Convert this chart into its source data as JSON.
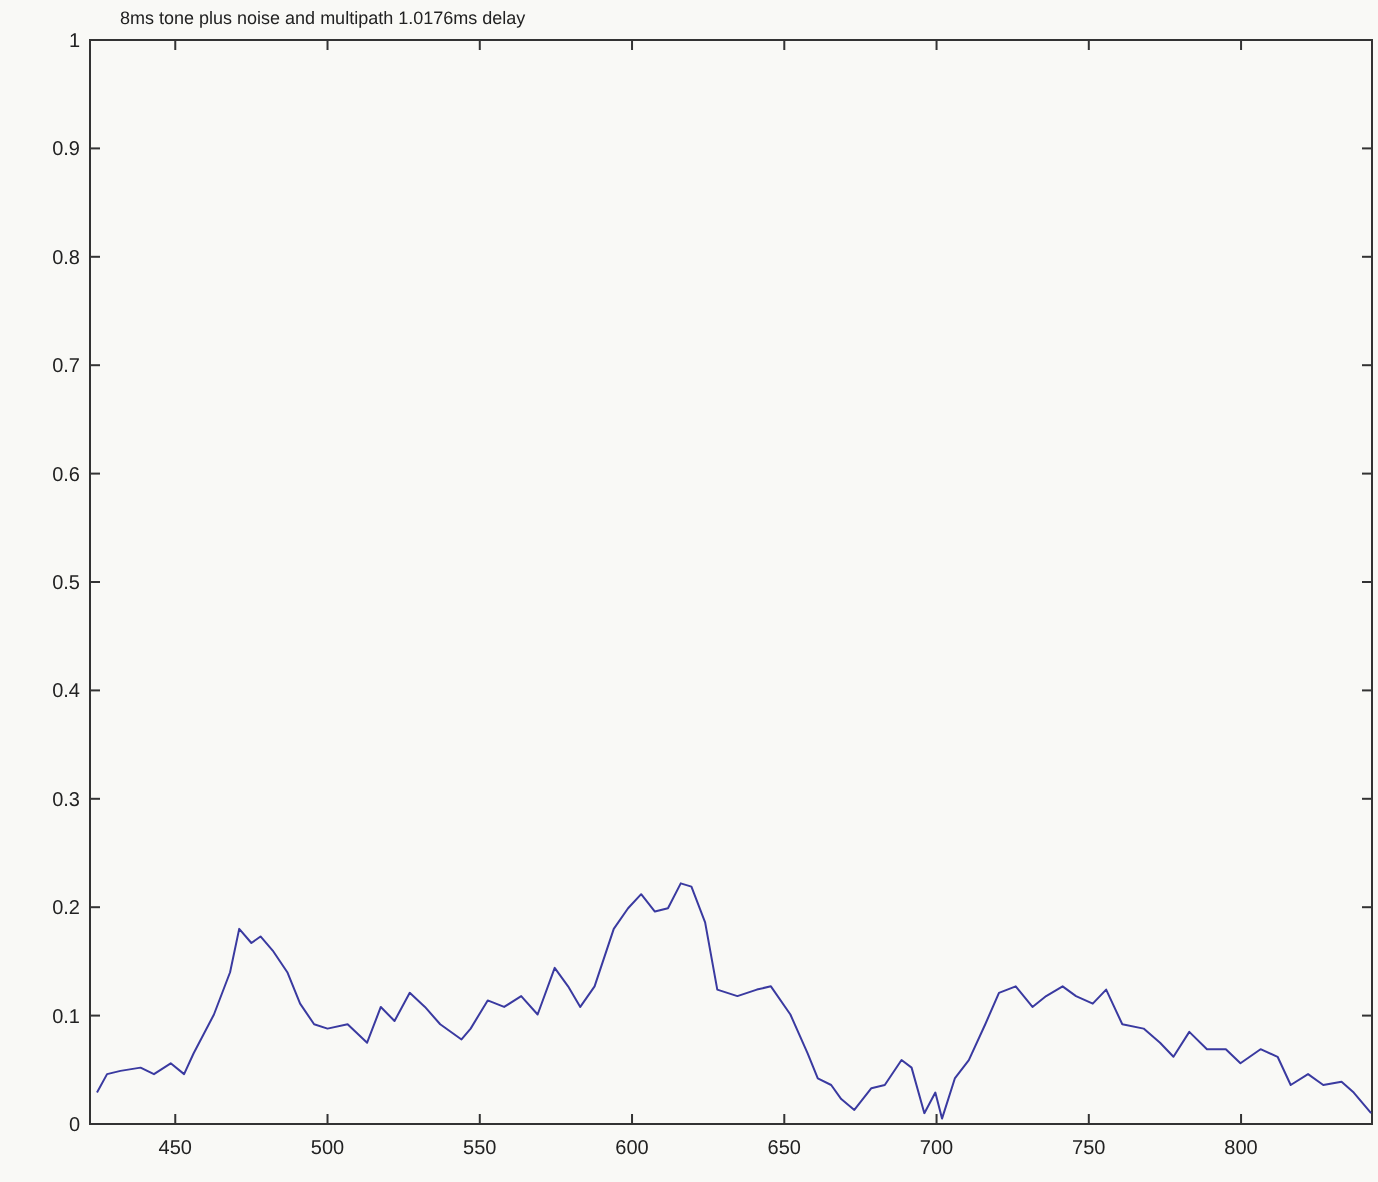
{
  "chart_data": {
    "type": "line",
    "title": "8ms tone plus noise and multipath 1.0176ms delay",
    "xlim": [
      422,
      843
    ],
    "xticks": [
      450,
      500,
      550,
      600,
      650,
      700,
      750,
      800
    ],
    "ylim": [
      0,
      1
    ],
    "yticks": [
      0,
      0.1,
      0.2,
      0.3,
      0.4,
      0.5,
      0.6,
      0.7,
      0.8,
      0.9,
      1
    ],
    "grid": false,
    "marker": "none",
    "x": [
      424.3,
      427.6,
      432,
      438.6,
      443,
      448.5,
      452.9,
      456,
      462.7,
      468,
      471,
      475,
      478,
      482,
      486.8,
      491,
      495.6,
      500,
      506.6,
      513,
      517.5,
      522,
      527,
      532,
      537,
      544,
      547,
      552.6,
      558,
      563.6,
      569,
      574.6,
      579,
      583,
      587.7,
      594,
      598.7,
      603,
      607.5,
      611.8,
      616,
      619.5,
      624,
      628,
      634.6,
      641,
      645.6,
      652,
      657.7,
      661,
      665.4,
      668.7,
      673,
      678.6,
      683,
      688.5,
      691.8,
      696,
      699.6,
      701.8,
      706,
      710.6,
      716,
      720.5,
      726,
      731.5,
      736,
      741.4,
      745.8,
      751.3,
      755.7,
      761,
      768,
      773.4,
      777.8,
      783,
      788.8,
      795,
      799.8,
      806.4,
      812,
      816.3,
      822,
      827,
      833,
      837,
      842.7
    ],
    "series": [
      {
        "color": "#3a3aa0",
        "values": [
          0.029,
          0.046,
          0.049,
          0.052,
          0.046,
          0.056,
          0.046,
          0.065,
          0.101,
          0.14,
          0.18,
          0.167,
          0.173,
          0.16,
          0.14,
          0.111,
          0.092,
          0.088,
          0.092,
          0.075,
          0.108,
          0.095,
          0.121,
          0.108,
          0.092,
          0.078,
          0.088,
          0.114,
          0.108,
          0.118,
          0.101,
          0.144,
          0.127,
          0.108,
          0.127,
          0.18,
          0.199,
          0.212,
          0.196,
          0.199,
          0.222,
          0.219,
          0.186,
          0.124,
          0.118,
          0.124,
          0.127,
          0.101,
          0.065,
          0.042,
          0.036,
          0.023,
          0.013,
          0.033,
          0.036,
          0.059,
          0.052,
          0.01,
          0.029,
          0.005,
          0.042,
          0.059,
          0.092,
          0.121,
          0.127,
          0.108,
          0.118,
          0.127,
          0.118,
          0.111,
          0.124,
          0.092,
          0.088,
          0.075,
          0.062,
          0.085,
          0.069,
          0.069,
          0.056,
          0.069,
          0.062,
          0.036,
          0.046,
          0.036,
          0.039,
          0.029,
          0.01
        ]
      }
    ]
  }
}
